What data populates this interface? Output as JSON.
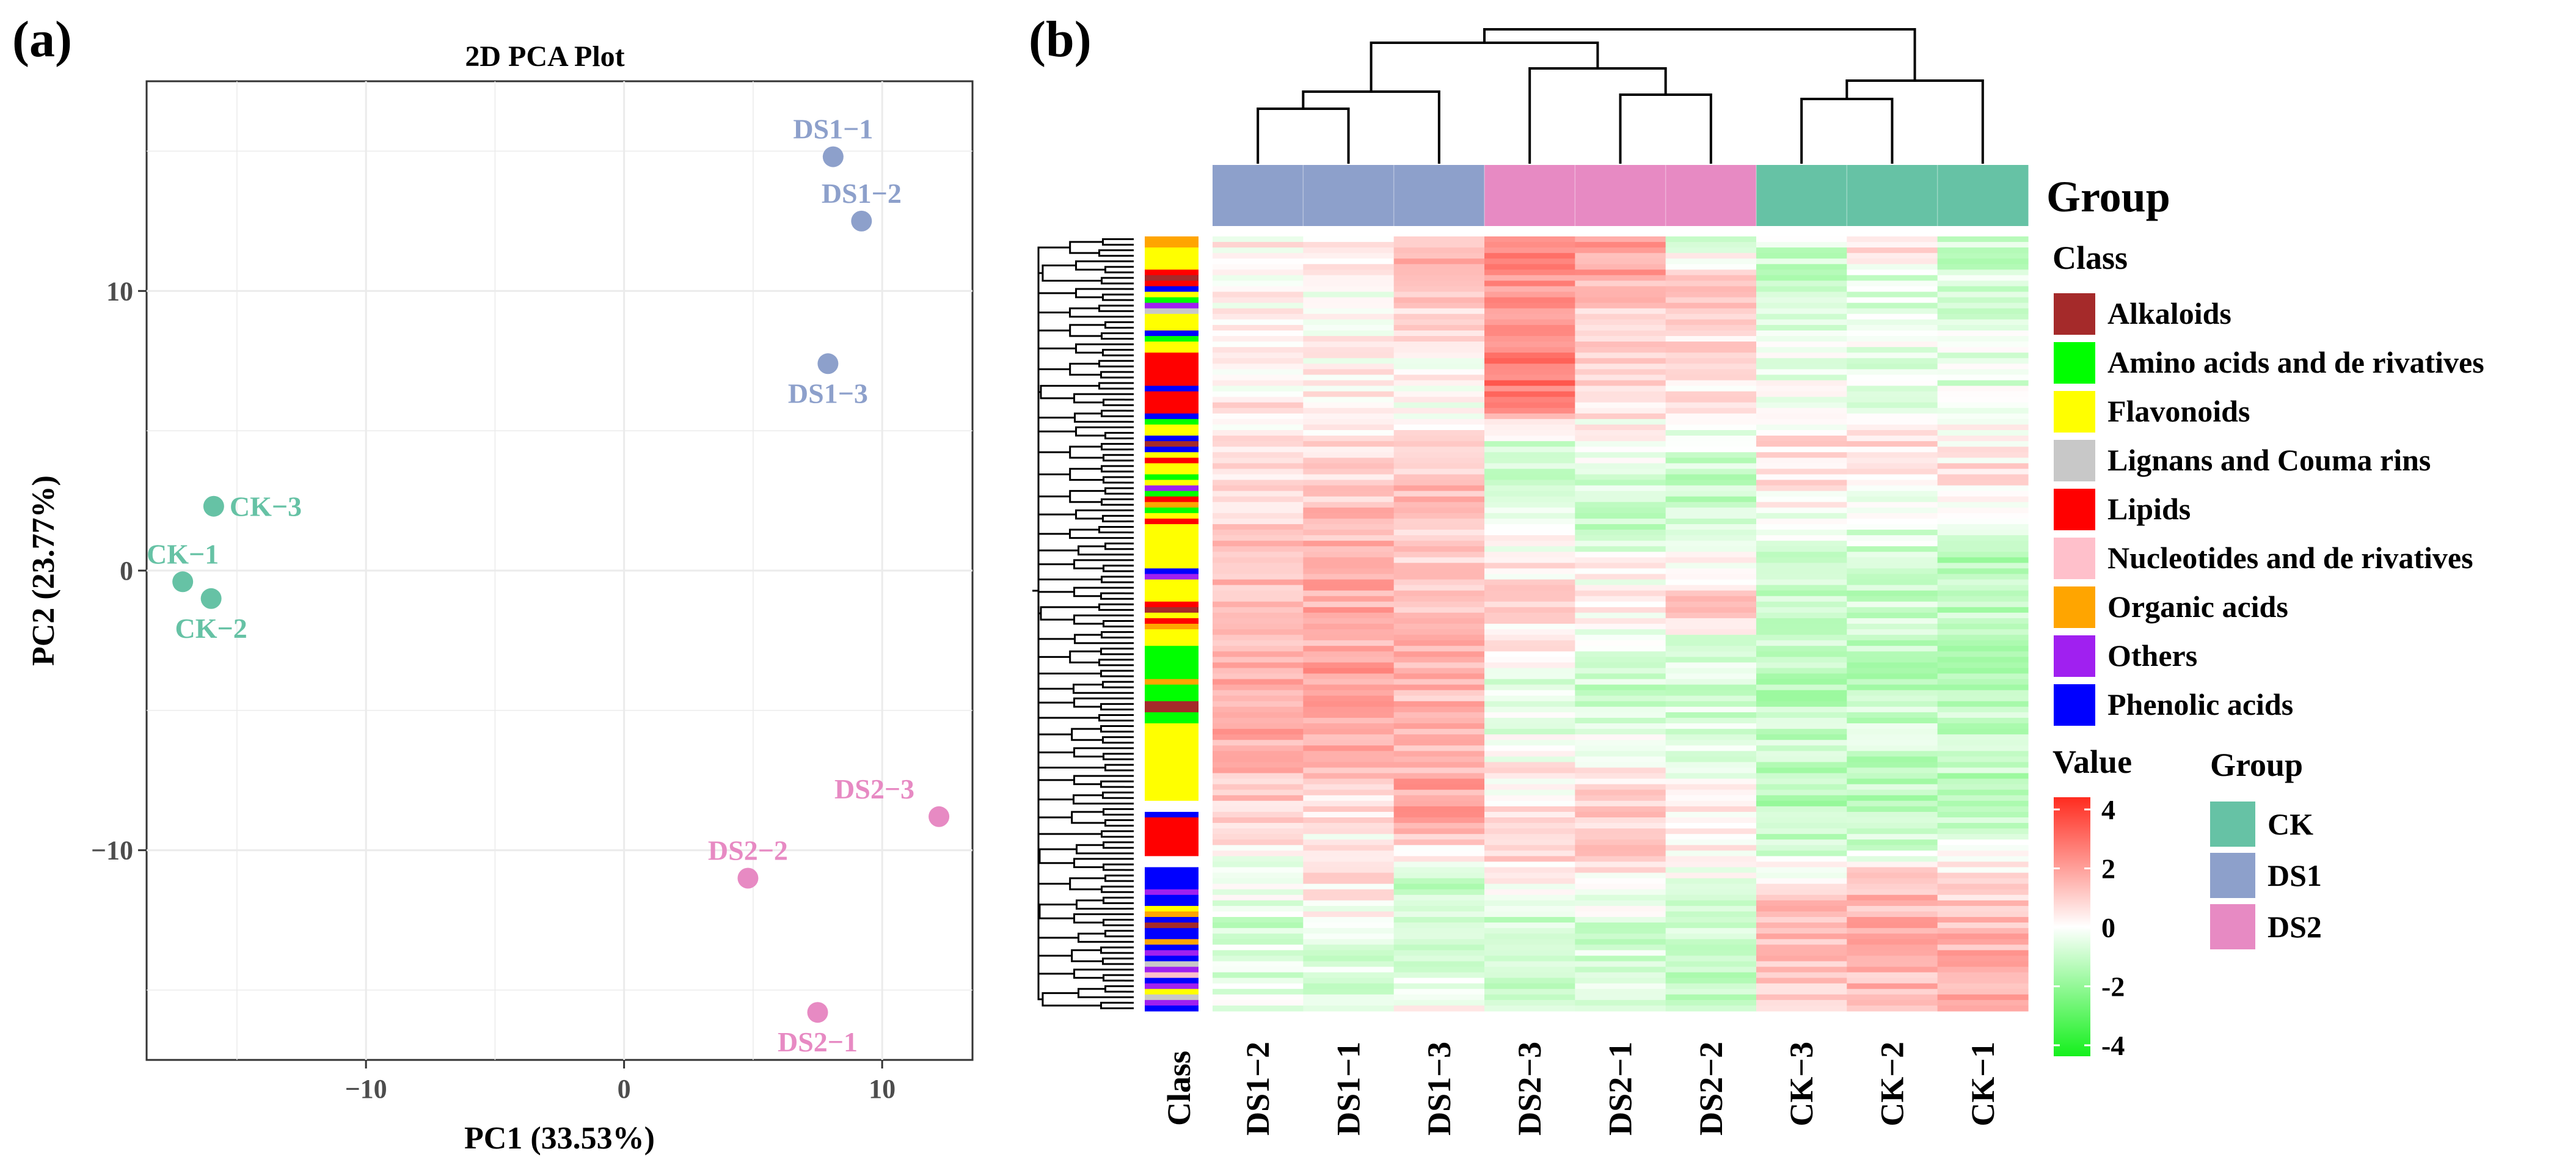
{
  "colors": {
    "CK": "#66c2a5",
    "DS1": "#8da0cb",
    "DS2": "#e78ac3",
    "high": "#ff2b1f",
    "low": "#14f01c"
  },
  "chart_data": [
    {
      "type": "scatter",
      "panel_label": "(a)",
      "title": "2D PCA Plot",
      "xlabel": "PC1 (33.53%)",
      "ylabel": "PC2 (23.77%)",
      "xlim": [
        -18.5,
        13.5
      ],
      "ylim": [
        -17.5,
        17.5
      ],
      "xticks": [
        -10,
        0,
        10
      ],
      "xtick_labels": [
        "−10",
        "0",
        "10"
      ],
      "yticks": [
        -10,
        0,
        10
      ],
      "ytick_labels": [
        "−10",
        "0",
        "10"
      ],
      "points": [
        {
          "id": "DS1-1",
          "label": "DS1−1",
          "group": "DS1",
          "x": 8.1,
          "y": 14.8,
          "label_pos": "above"
        },
        {
          "id": "DS1-2",
          "label": "DS1−2",
          "group": "DS1",
          "x": 9.2,
          "y": 12.5,
          "label_pos": "above"
        },
        {
          "id": "DS1-3",
          "label": "DS1−3",
          "group": "DS1",
          "x": 7.9,
          "y": 7.4,
          "label_pos": "below"
        },
        {
          "id": "CK-3",
          "label": "CK−3",
          "group": "CK",
          "x": -15.9,
          "y": 2.3,
          "label_pos": "right"
        },
        {
          "id": "CK-1",
          "label": "CK−1",
          "group": "CK",
          "x": -17.1,
          "y": -0.4,
          "label_pos": "above"
        },
        {
          "id": "CK-2",
          "label": "CK−2",
          "group": "CK",
          "x": -16.0,
          "y": -1.0,
          "label_pos": "below"
        },
        {
          "id": "DS2-3",
          "label": "DS2−3",
          "group": "DS2",
          "x": 12.2,
          "y": -8.8,
          "label_pos": "aboveleft"
        },
        {
          "id": "DS2-2",
          "label": "DS2−2",
          "group": "DS2",
          "x": 4.8,
          "y": -11.0,
          "label_pos": "above"
        },
        {
          "id": "DS2-1",
          "label": "DS2−1",
          "group": "DS2",
          "x": 7.5,
          "y": -15.8,
          "label_pos": "below"
        }
      ]
    },
    {
      "type": "heatmap",
      "panel_label": "(b)",
      "columns": [
        "DS1−2",
        "DS1−1",
        "DS1−3",
        "DS2−3",
        "DS2−1",
        "DS2−2",
        "CK−3",
        "CK−2",
        "CK−1"
      ],
      "column_groups": [
        "DS1",
        "DS1",
        "DS1",
        "DS2",
        "DS2",
        "DS2",
        "CK",
        "CK",
        "CK"
      ],
      "class_column_label": "Class",
      "group_row_label": "Group",
      "n_rows": 140,
      "value_range": [
        -4,
        4
      ],
      "value_ticks": [
        4,
        2,
        0,
        -2,
        -4
      ],
      "column_profiles": [
        [
          0.3,
          0.1,
          0.0,
          0.3,
          0.4,
          0.2,
          0.6,
          0.9,
          1.3,
          1.4,
          1.5,
          1.7,
          1.6,
          1.3,
          0.9,
          0.3,
          -0.4,
          -0.7,
          -0.5,
          -0.3
        ],
        [
          0.4,
          0.2,
          -0.1,
          0.2,
          0.3,
          0.5,
          0.9,
          1.2,
          1.5,
          1.5,
          1.6,
          1.8,
          1.7,
          1.2,
          0.6,
          0.2,
          0.5,
          -0.4,
          -0.6,
          -0.3
        ],
        [
          1.5,
          1.1,
          0.6,
          0.2,
          0.1,
          0.6,
          1.2,
          1.0,
          0.8,
          1.0,
          1.3,
          1.4,
          1.2,
          1.5,
          1.8,
          0.6,
          -0.9,
          -0.7,
          -0.4,
          0.1
        ],
        [
          2.3,
          2.0,
          2.2,
          2.6,
          2.5,
          -0.7,
          -0.6,
          -0.2,
          0.2,
          0.8,
          0.3,
          -0.4,
          -0.5,
          0.2,
          0.4,
          0.9,
          0.2,
          -0.9,
          -1.1,
          -1.1
        ],
        [
          1.9,
          1.6,
          0.9,
          0.6,
          0.5,
          0.1,
          -0.7,
          -0.9,
          0.0,
          0.3,
          -0.3,
          -0.8,
          -0.7,
          0.4,
          1.0,
          0.9,
          0.0,
          -0.7,
          -0.6,
          -0.8
        ],
        [
          -0.4,
          0.7,
          0.9,
          0.5,
          0.3,
          -0.5,
          -1.0,
          -0.8,
          0.3,
          1.0,
          -0.5,
          -0.9,
          -0.6,
          -0.3,
          0.2,
          0.4,
          -0.3,
          -0.9,
          -0.8,
          -1.1
        ],
        [
          -0.6,
          -1.0,
          -0.8,
          -0.3,
          -0.2,
          0.5,
          0.4,
          -0.3,
          -0.9,
          -0.9,
          -1.0,
          -1.1,
          -1.0,
          -1.1,
          -1.2,
          -0.8,
          0.8,
          1.4,
          1.2,
          1.0
        ],
        [
          0.9,
          -0.6,
          -0.5,
          -0.4,
          -0.3,
          0.6,
          0.5,
          -0.4,
          -0.8,
          -0.9,
          -1.0,
          -1.0,
          -0.9,
          -1.0,
          -1.1,
          -0.6,
          1.1,
          1.6,
          1.4,
          1.1
        ],
        [
          -1.0,
          -0.6,
          -0.6,
          -0.5,
          -0.4,
          0.4,
          0.5,
          -0.6,
          -1.2,
          -1.1,
          -1.0,
          -1.1,
          -1.0,
          -1.1,
          -1.1,
          -0.5,
          0.9,
          1.3,
          1.5,
          1.4
        ]
      ],
      "class_row_colors": [
        "#FFA500",
        "#FFA500",
        "#FFFF00",
        "#FFFF00",
        "#FFFF00",
        "#FFFF00",
        "#FF0000",
        "#A52A2A",
        "#FF0000",
        "#0000FF",
        "#FFFF00",
        "#00FF00",
        "#A020F0",
        "#C8C8C8",
        "#FFFF00",
        "#FFFF00",
        "#FFFF00",
        "#0000FF",
        "#00FF00",
        "#FFFF00",
        "#FFFF00",
        "#FF0000",
        "#FF0000",
        "#FF0000",
        "#FF0000",
        "#FF0000",
        "#FF0000",
        "#0000FF",
        "#FF0000",
        "#FF0000",
        "#FF0000",
        "#FF0000",
        "#0000FF",
        "#00FF00",
        "#FFFF00",
        "#FFFF00",
        "#0000FF",
        "#A52A2A",
        "#0000FF",
        "#FFFF00",
        "#FF0000",
        "#FFFF00",
        "#FFFF00",
        "#00FF00",
        "#FFFF00",
        "#A020F0",
        "#00FF00",
        "#FF0000",
        "#FFA500",
        "#00FF00",
        "#FFFF00",
        "#FF0000",
        "#FFFF00",
        "#FFFF00",
        "#FFFF00",
        "#FFFF00",
        "#FFFF00",
        "#FFFF00",
        "#FFFF00",
        "#FFFF00",
        "#0000FF",
        "#A020F0",
        "#FFFF00",
        "#FFFF00",
        "#FFFF00",
        "#FFFF00",
        "#FF0000",
        "#A52A2A",
        "#FFFF00",
        "#FF0000",
        "#FFA500",
        "#FFFF00",
        "#FFFF00",
        "#FFFF00",
        "#00FF00",
        "#00FF00",
        "#00FF00",
        "#00FF00",
        "#00FF00",
        "#00FF00",
        "#FFA500",
        "#00FF00",
        "#00FF00",
        "#00FF00",
        "#A52A2A",
        "#A52A2A",
        "#00FF00",
        "#00FF00",
        "#FFFF00",
        "#FFFF00",
        "#FFFF00",
        "#FFFF00",
        "#FFFF00",
        "#FFFF00",
        "#FFFF00",
        "#FFFF00",
        "#FFFF00",
        "#FFFF00",
        "#FFFF00",
        "#FFFF00",
        "#FFFF00",
        "#FFFF00",
        "#FFFFFF",
        "#FFFFFF",
        "#0000FF",
        "#FF0000",
        "#FF0000",
        "#FF0000",
        "#FF0000",
        "#FF0000",
        "#FF0000",
        "#FF0000",
        "#FFFFFF",
        "#FFFFFF",
        "#0000FF",
        "#0000FF",
        "#0000FF",
        "#0000FF",
        "#A020F0",
        "#0000FF",
        "#0000FF",
        "#FFFF00",
        "#FFA500",
        "#0000FF",
        "#A52A2A",
        "#0000FF",
        "#0000FF",
        "#FFA500",
        "#0000FF",
        "#A020F0",
        "#0000FF",
        "#C8C8C8",
        "#A020F0",
        "#FFC0CB",
        "#0000FF",
        "#A020F0",
        "#FFFF00",
        "#C8C8C8",
        "#A020F0",
        "#0000FF"
      ]
    }
  ],
  "legends": {
    "group_label": "Group",
    "class_title": "Class",
    "classes": [
      {
        "label": "Alkaloids",
        "color": "#A52A2A"
      },
      {
        "label": "Amino acids and de rivatives",
        "color": "#00FF00"
      },
      {
        "label": "Flavonoids",
        "color": "#FFFF00"
      },
      {
        "label": "Lignans and Couma rins",
        "color": "#C8C8C8"
      },
      {
        "label": "Lipids",
        "color": "#FF0000"
      },
      {
        "label": "Nucleotides and de rivatives",
        "color": "#FFC0CB"
      },
      {
        "label": "Organic acids",
        "color": "#FFA500"
      },
      {
        "label": "Others",
        "color": "#A020F0"
      },
      {
        "label": "Phenolic acids",
        "color": "#0000FF"
      }
    ],
    "value_title": "Value",
    "group_title": "Group",
    "groups": [
      {
        "label": "CK",
        "color": "#66c2a5"
      },
      {
        "label": "DS1",
        "color": "#8da0cb"
      },
      {
        "label": "DS2",
        "color": "#e78ac3"
      }
    ]
  }
}
